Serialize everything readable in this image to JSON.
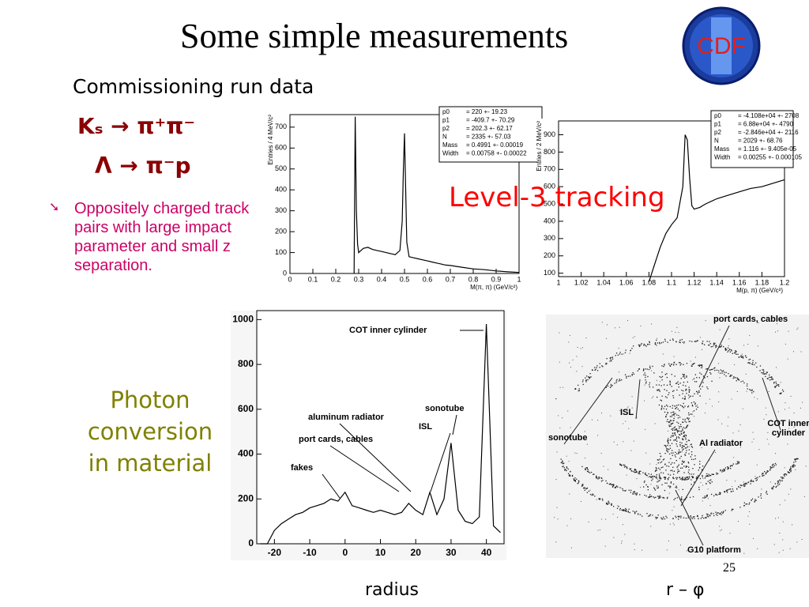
{
  "header": {
    "title": "Some simple measurements",
    "subtitle": "Commissioning run data",
    "logo": "CDF"
  },
  "reactions": [
    "Kₛ → π⁺π⁻",
    "Λ → π⁻p"
  ],
  "bullet": "Oppositely charged track pairs with large impact parameter and small z separation.",
  "level3_label": "Level-3 tracking",
  "photon_label": "Photon conversion in material",
  "page_number": "25",
  "captions": [
    "radius",
    "r – φ"
  ],
  "image_labels": [
    "port cards, cables",
    "ISL",
    "sonotube",
    "Al radiator",
    "COT inner cylinder",
    "G10 platform"
  ],
  "chart_data": [
    {
      "type": "line",
      "x_label": "M(π, π)  (GeV/c²)",
      "y_label": "Entries / 4 MeV/c²",
      "color": "#000000",
      "x": [
        0.28,
        0.285,
        0.29,
        0.295,
        0.3,
        0.31,
        0.32,
        0.34,
        0.36,
        0.38,
        0.4,
        0.42,
        0.44,
        0.46,
        0.48,
        0.49,
        0.495,
        0.5,
        0.505,
        0.51,
        0.52,
        0.54,
        0.56,
        0.58,
        0.6,
        0.62,
        0.64,
        0.66,
        0.68,
        0.7,
        0.75,
        0.8,
        0.85,
        0.9,
        0.95,
        1
      ],
      "values": [
        0,
        750,
        300,
        140,
        100,
        110,
        120,
        125,
        115,
        110,
        105,
        100,
        95,
        90,
        110,
        250,
        500,
        670,
        400,
        150,
        80,
        75,
        70,
        65,
        60,
        55,
        50,
        45,
        40,
        38,
        30,
        22,
        18,
        12,
        8,
        5
      ],
      "xlim": [
        0,
        1
      ],
      "ylim": [
        0,
        760
      ],
      "xticks": [
        0,
        0.1,
        0.2,
        0.3,
        0.4,
        0.5,
        0.6,
        0.7,
        0.8,
        0.9,
        1
      ],
      "yticks": [
        0,
        100,
        200,
        300,
        400,
        500,
        600,
        700
      ],
      "stats": [
        {
          "name": "p0",
          "value": "=  220 +- 19.23"
        },
        {
          "name": "p1",
          "value": "= -409.7 +- 70.29"
        },
        {
          "name": "p2",
          "value": "= 202.3 +- 62.17"
        },
        {
          "name": "N",
          "value": "= 2335 +- 57.03"
        },
        {
          "name": "Mass",
          "value": "= 0.4991 +- 0.00019"
        },
        {
          "name": "Width",
          "value": "= 0.00758 +- 0.00022"
        }
      ]
    },
    {
      "type": "line",
      "x_label": "M(p, π)  (GeV/c²)",
      "y_label": "Entries / 2 MeV/c²",
      "color": "#000000",
      "x": [
        1.08,
        1.085,
        1.09,
        1.095,
        1.1,
        1.105,
        1.11,
        1.112,
        1.114,
        1.116,
        1.118,
        1.12,
        1.125,
        1.13,
        1.14,
        1.15,
        1.16,
        1.17,
        1.18,
        1.19,
        1.2
      ],
      "values": [
        50,
        150,
        250,
        330,
        380,
        420,
        600,
        900,
        870,
        650,
        490,
        470,
        480,
        500,
        530,
        550,
        570,
        590,
        600,
        620,
        640
      ],
      "xlim": [
        1,
        1.2
      ],
      "ylim": [
        80,
        980
      ],
      "xticks": [
        1,
        1.02,
        1.04,
        1.06,
        1.08,
        1.1,
        1.12,
        1.14,
        1.16,
        1.18,
        1.2
      ],
      "yticks": [
        100,
        200,
        300,
        400,
        500,
        600,
        700,
        800,
        900
      ],
      "stats": [
        {
          "name": "p0",
          "value": "= -4.108e+04 +- 2708"
        },
        {
          "name": "p1",
          "value": "= 6.88e+04 +- 4790"
        },
        {
          "name": "p2",
          "value": "= -2.846e+04 +- 2116"
        },
        {
          "name": "N",
          "value": "= 2029 +- 68.76"
        },
        {
          "name": "Mass",
          "value": "= 1.116 +- 9.405e-05"
        },
        {
          "name": "Width",
          "value": "= 0.00255 +- 0.000105"
        }
      ]
    },
    {
      "type": "line",
      "color": "#000000",
      "x": [
        -24,
        -22,
        -20,
        -18,
        -16,
        -14,
        -12,
        -10,
        -8,
        -6,
        -4,
        -2,
        0,
        2,
        4,
        6,
        8,
        10,
        12,
        14,
        16,
        18,
        20,
        22,
        24,
        26,
        28,
        30,
        32,
        34,
        36,
        38,
        40,
        42,
        44
      ],
      "values": [
        0,
        0,
        60,
        90,
        110,
        130,
        140,
        160,
        170,
        180,
        200,
        190,
        230,
        170,
        160,
        150,
        140,
        150,
        140,
        130,
        140,
        180,
        150,
        130,
        230,
        130,
        200,
        450,
        150,
        100,
        90,
        120,
        980,
        80,
        50
      ],
      "xlim": [
        -25,
        45
      ],
      "ylim": [
        0,
        1040
      ],
      "xticks": [
        -20,
        -10,
        0,
        10,
        20,
        30,
        40
      ],
      "yticks": [
        0,
        200,
        400,
        600,
        800,
        1000
      ],
      "annotations": [
        "COT inner cylinder",
        "aluminum radiator",
        "port cards, cables",
        "ISL",
        "sonotube",
        "fakes"
      ]
    }
  ]
}
